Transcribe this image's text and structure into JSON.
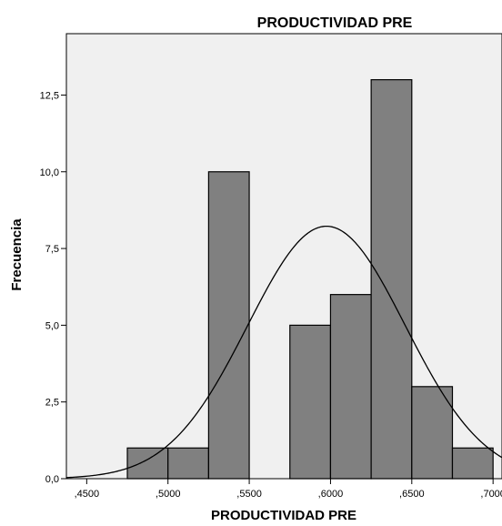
{
  "chart_data": {
    "type": "bar",
    "subtype": "histogram",
    "title": "PRODUCTIVIDAD PRE",
    "xlabel": "PRODUCTIVIDAD PRE",
    "ylabel": "Frecuencia",
    "xlim": [
      0.4375,
      0.7055
    ],
    "ylim": [
      0,
      14.5
    ],
    "xticks": [
      {
        "value": 0.45,
        "label": ",4500"
      },
      {
        "value": 0.5,
        "label": ",5000"
      },
      {
        "value": 0.55,
        "label": ",5500"
      },
      {
        "value": 0.6,
        "label": ",6000"
      },
      {
        "value": 0.65,
        "label": ",6500"
      },
      {
        "value": 0.7,
        "label": ",7000"
      }
    ],
    "yticks": [
      {
        "value": 0,
        "label": "0,0"
      },
      {
        "value": 2.5,
        "label": "2,5"
      },
      {
        "value": 5.0,
        "label": "5,0"
      },
      {
        "value": 7.5,
        "label": "7,5"
      },
      {
        "value": 10.0,
        "label": "10,0"
      },
      {
        "value": 12.5,
        "label": "12,5"
      }
    ],
    "bins": [
      {
        "start": 0.475,
        "end": 0.5,
        "count": 1
      },
      {
        "start": 0.5,
        "end": 0.525,
        "count": 1
      },
      {
        "start": 0.525,
        "end": 0.55,
        "count": 10
      },
      {
        "start": 0.575,
        "end": 0.6,
        "count": 5
      },
      {
        "start": 0.6,
        "end": 0.625,
        "count": 6
      },
      {
        "start": 0.625,
        "end": 0.65,
        "count": 13
      },
      {
        "start": 0.65,
        "end": 0.675,
        "count": 3
      },
      {
        "start": 0.675,
        "end": 0.7,
        "count": 1
      }
    ],
    "normal_curve": {
      "mean": 0.5975,
      "std": 0.0485,
      "n": 40,
      "bin_width": 0.025
    },
    "grid": false,
    "colors": {
      "bar": "#808080",
      "plot_bg": "#f0f0f0",
      "curve": "#000000"
    }
  }
}
